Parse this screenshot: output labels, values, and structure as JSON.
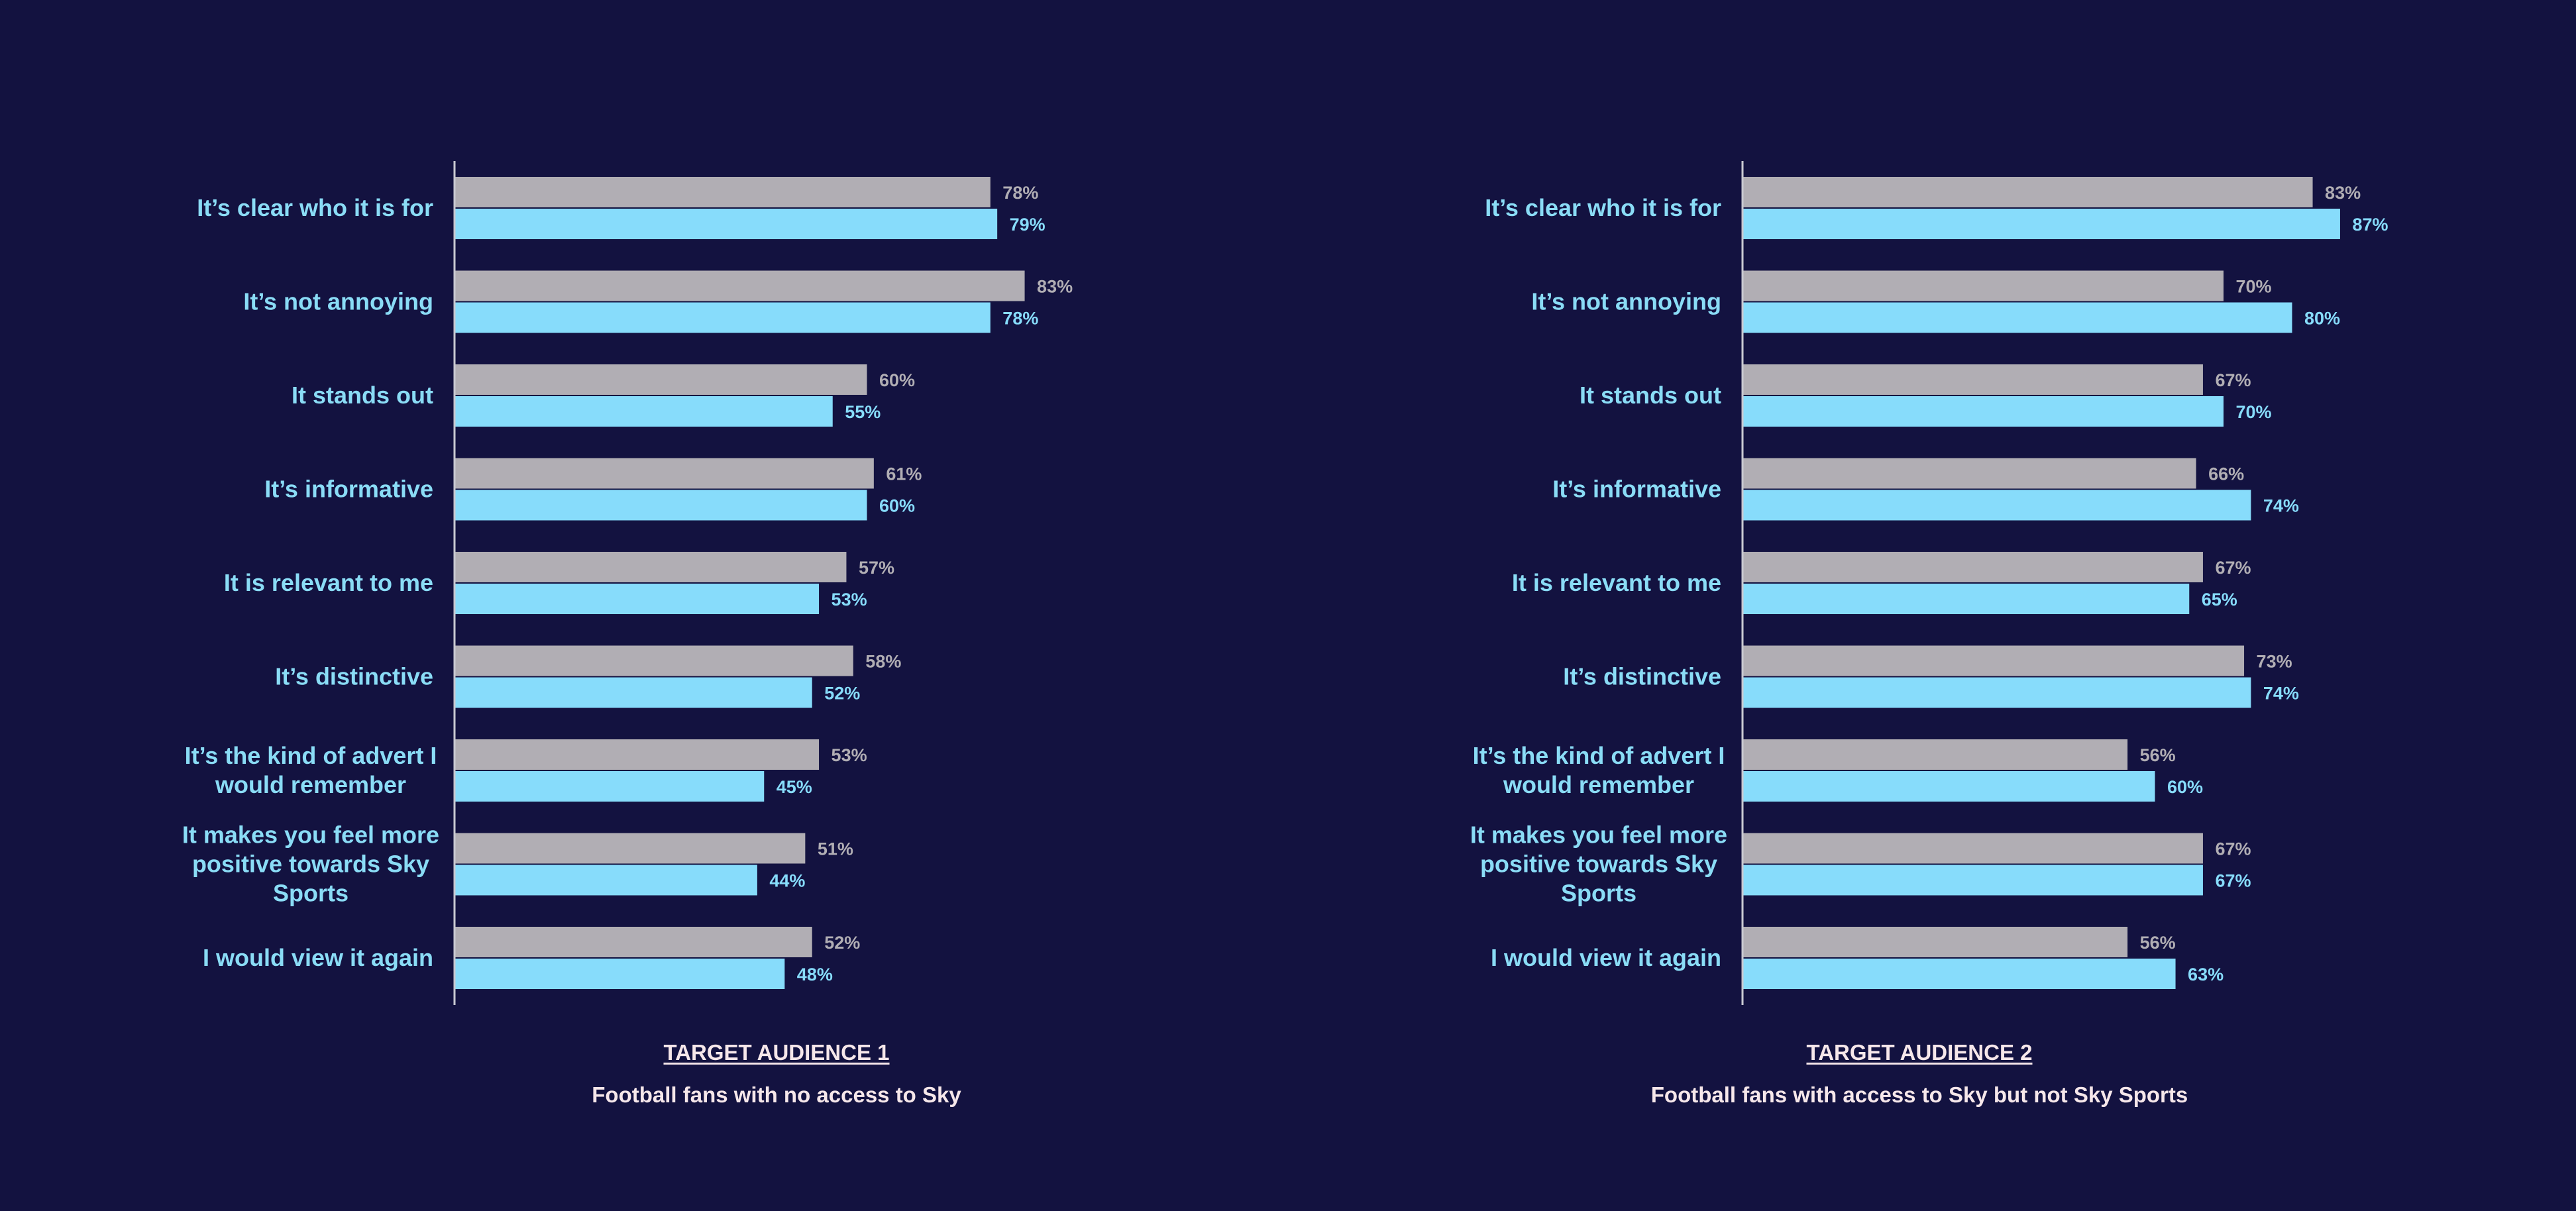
{
  "colors": {
    "background": "#131240",
    "series_grey": "#b1aeb4",
    "series_blue": "#87dcfb",
    "label_blue": "#8adcf6",
    "axis": "#c9c9d2",
    "footer_text": "#f6e7ea"
  },
  "chart_data": [
    {
      "type": "bar",
      "orientation": "horizontal",
      "categories": [
        [
          "It’s clear who it is for"
        ],
        [
          "It’s not annoying"
        ],
        [
          "It stands out"
        ],
        [
          "It’s informative"
        ],
        [
          "It is relevant to me"
        ],
        [
          "It’s distinctive"
        ],
        [
          "It’s the kind of advert I",
          "would remember"
        ],
        [
          "It makes you feel more",
          "positive towards Sky",
          "Sports"
        ],
        [
          "I would view it again"
        ]
      ],
      "series": [
        {
          "values": [
            78,
            83,
            60,
            61,
            57,
            58,
            53,
            51,
            52
          ],
          "value_labels": [
            "78%",
            "83%",
            "60%",
            "61%",
            "57%",
            "58%",
            "53%",
            "51%",
            "52%"
          ],
          "color": "#b1aeb4"
        },
        {
          "values": [
            79,
            78,
            55,
            60,
            53,
            52,
            45,
            44,
            48
          ],
          "value_labels": [
            "79%",
            "78%",
            "55%",
            "60%",
            "53%",
            "52%",
            "45%",
            "44%",
            "48%"
          ],
          "color": "#87dcfb"
        }
      ],
      "xlim": [
        0,
        100
      ],
      "grid": false,
      "title": "TARGET AUDIENCE 1",
      "subtitle": "Football fans with no access to Sky"
    },
    {
      "type": "bar",
      "orientation": "horizontal",
      "categories": [
        [
          "It’s clear who it is for"
        ],
        [
          "It’s not annoying"
        ],
        [
          "It stands out"
        ],
        [
          "It’s informative"
        ],
        [
          "It is relevant to me"
        ],
        [
          "It’s distinctive"
        ],
        [
          "It’s the kind of advert I",
          "would remember"
        ],
        [
          "It makes you feel more",
          "positive towards Sky",
          "Sports"
        ],
        [
          "I would view it again"
        ]
      ],
      "series": [
        {
          "values": [
            83,
            70,
            67,
            66,
            67,
            73,
            56,
            67,
            56
          ],
          "value_labels": [
            "83%",
            "70%",
            "67%",
            "66%",
            "67%",
            "73%",
            "56%",
            "67%",
            "56%"
          ],
          "color": "#b1aeb4"
        },
        {
          "values": [
            87,
            80,
            70,
            74,
            65,
            74,
            60,
            67,
            63
          ],
          "value_labels": [
            "87%",
            "80%",
            "70%",
            "74%",
            "65%",
            "74%",
            "60%",
            "67%",
            "63%"
          ],
          "color": "#87dcfb"
        }
      ],
      "xlim": [
        0,
        100
      ],
      "grid": false,
      "title": "TARGET AUDIENCE 2",
      "subtitle": "Football fans with access to Sky but not Sky Sports"
    }
  ]
}
